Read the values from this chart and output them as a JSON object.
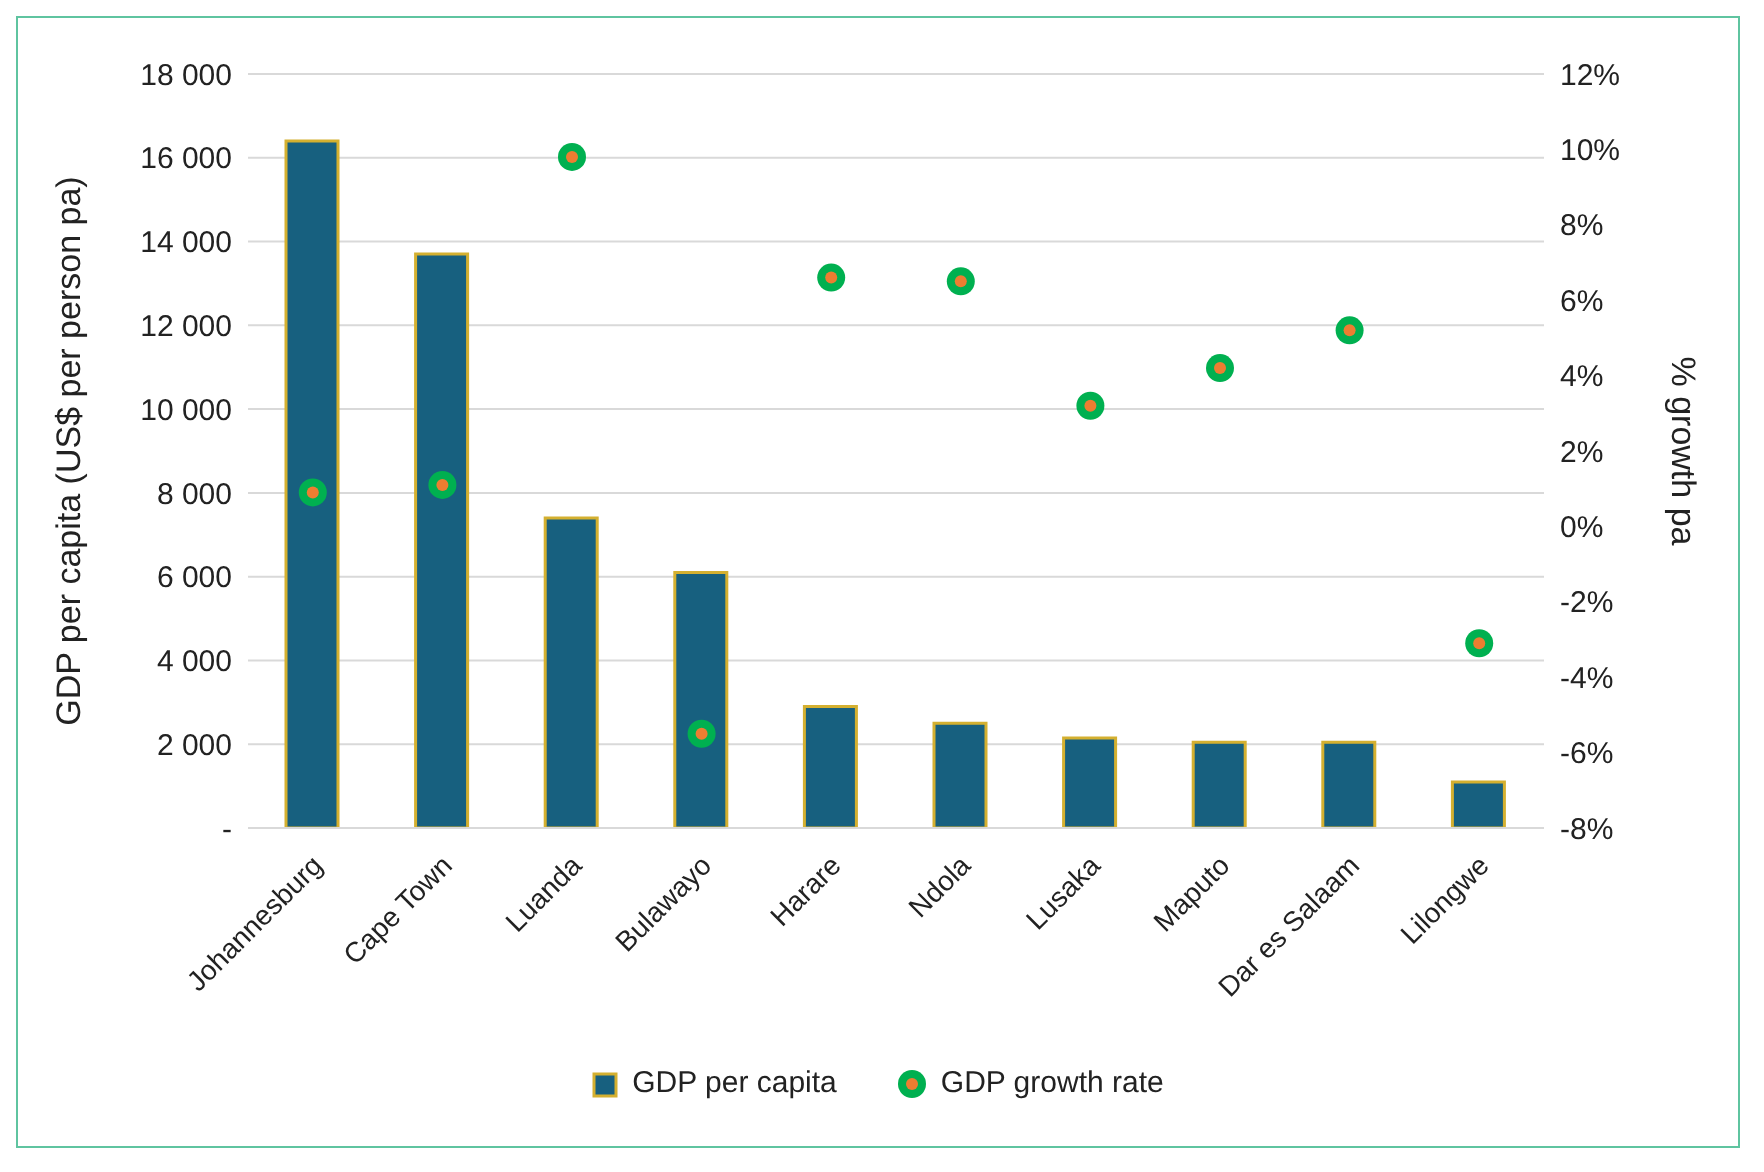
{
  "chart_data": {
    "type": "bar",
    "ylabel": "GDP per capita (US$ per person pa)",
    "y2label": "% growth pa",
    "categories": [
      "Johannesburg",
      "Cape Town",
      "Luanda",
      "Bulawayo",
      "Harare",
      "Ndola",
      "Lusaka",
      "Maputo",
      "Dar es Salaam",
      "Lilongwe"
    ],
    "series": [
      {
        "name": "GDP per capita",
        "color": "#17607f",
        "values": [
          16400,
          13700,
          7400,
          6100,
          2900,
          2500,
          2150,
          2050,
          2050,
          1100
        ]
      },
      {
        "name": "GDP growth rate",
        "type": "scatter",
        "axis": "y2",
        "color": "#00b050",
        "values": [
          0.9,
          1.1,
          9.8,
          -5.5,
          6.6,
          6.5,
          3.2,
          4.2,
          5.2,
          -3.1
        ]
      }
    ],
    "ylim": [
      0,
      18000
    ],
    "yticks": [
      {
        "value": 0,
        "label": "-"
      },
      {
        "value": 2000,
        "label": "2 000"
      },
      {
        "value": 4000,
        "label": "4 000"
      },
      {
        "value": 6000,
        "label": "6 000"
      },
      {
        "value": 8000,
        "label": "8 000"
      },
      {
        "value": 10000,
        "label": "10 000"
      },
      {
        "value": 12000,
        "label": "12 000"
      },
      {
        "value": 14000,
        "label": "14 000"
      },
      {
        "value": 16000,
        "label": "16 000"
      },
      {
        "value": 18000,
        "label": "18 000"
      }
    ],
    "y2lim": [
      -8,
      12
    ],
    "y2ticks": [
      {
        "value": -8,
        "label": "-8%"
      },
      {
        "value": -6,
        "label": "-6%"
      },
      {
        "value": -4,
        "label": "-4%"
      },
      {
        "value": -2,
        "label": "-2%"
      },
      {
        "value": 0,
        "label": "0%"
      },
      {
        "value": 2,
        "label": "2%"
      },
      {
        "value": 4,
        "label": "4%"
      },
      {
        "value": 6,
        "label": "6%"
      },
      {
        "value": 8,
        "label": "8%"
      },
      {
        "value": 10,
        "label": "10%"
      },
      {
        "value": 12,
        "label": "12%"
      }
    ],
    "grid": "y",
    "legend": "bottom",
    "marker": "circle"
  }
}
